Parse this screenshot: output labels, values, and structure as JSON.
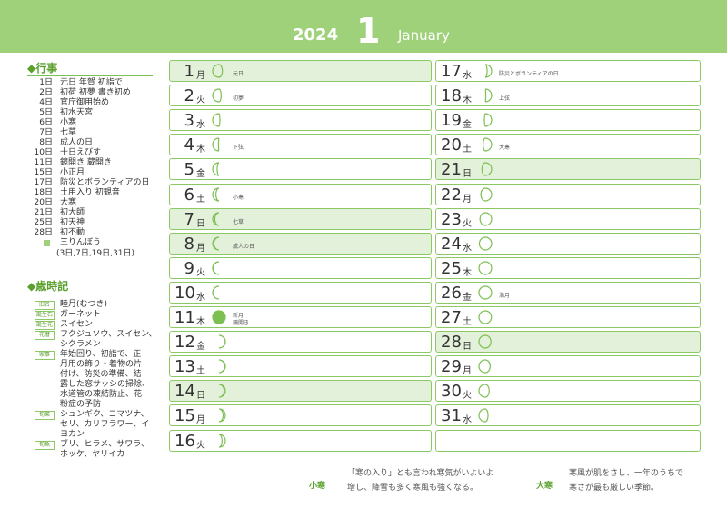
{
  "header": {
    "year": "2024",
    "month": "1",
    "month_name": "January"
  },
  "events": {
    "title": "◆行事",
    "items": [
      [
        "1日",
        "元日 年賀 初詣で"
      ],
      [
        "2日",
        "初荷 初夢 書き初め"
      ],
      [
        "4日",
        "官庁御用始め"
      ],
      [
        "5日",
        "初水天宮"
      ],
      [
        "6日",
        "小寒"
      ],
      [
        "7日",
        "七草"
      ],
      [
        "8日",
        "成人の日"
      ],
      [
        "10日",
        "十日えびす"
      ],
      [
        "11日",
        "鏡開き 蔵開き"
      ],
      [
        "15日",
        "小正月"
      ],
      [
        "17日",
        "防災とボランティアの日"
      ],
      [
        "18日",
        "土用入り 初観音"
      ],
      [
        "20日",
        "大寒"
      ],
      [
        "21日",
        "初大師"
      ],
      [
        "25日",
        "初天神"
      ],
      [
        "28日",
        "初不動"
      ]
    ],
    "sanrinbo": "三りんぼう",
    "sanrinbo_days": "(3日,7日,19日,31日)"
  },
  "almanac": {
    "title": "◆歳時記",
    "items": [
      [
        "旧名",
        [
          "睦月(むつき)"
        ]
      ],
      [
        "誕生石",
        [
          "ガーネット"
        ]
      ],
      [
        "誕生花",
        [
          "スイセン"
        ]
      ],
      [
        "花暦",
        [
          "フクジュソウ、スイセン、",
          "シクラメン"
        ]
      ],
      [
        "家事",
        [
          "年始回り、初詣で、正",
          "月用の飾り・着物の片",
          "付け、防災の準備、結",
          "露した窓サッシの掃除、",
          "水道管の凍結防止、花",
          "粉症の予防"
        ]
      ],
      [
        "旬菜",
        [
          "シュンギク、コマツナ、",
          "セリ、カリフラワー、イ",
          "ヨカン"
        ]
      ],
      [
        "旬魚",
        [
          "ブリ、ヒラメ、サワラ、",
          "ホッケ、ヤリイカ"
        ]
      ]
    ]
  },
  "days": [
    {
      "day": "1",
      "weekday": "月",
      "note": "元日",
      "shaded": true
    },
    {
      "day": "2",
      "weekday": "火",
      "note": "初夢"
    },
    {
      "day": "3",
      "weekday": "水"
    },
    {
      "day": "4",
      "weekday": "木",
      "note": "下弦"
    },
    {
      "day": "5",
      "weekday": "金"
    },
    {
      "day": "6",
      "weekday": "土",
      "note": "小寒"
    },
    {
      "day": "7",
      "weekday": "日",
      "note": "七草",
      "shaded": true
    },
    {
      "day": "8",
      "weekday": "月",
      "note": "成人の日",
      "shaded": true
    },
    {
      "day": "9",
      "weekday": "火"
    },
    {
      "day": "10",
      "weekday": "水"
    },
    {
      "day": "11",
      "weekday": "木",
      "note": "新月",
      "note2": "鏡開き"
    },
    {
      "day": "12",
      "weekday": "金"
    },
    {
      "day": "13",
      "weekday": "土"
    },
    {
      "day": "14",
      "weekday": "日",
      "shaded": true
    },
    {
      "day": "15",
      "weekday": "月"
    },
    {
      "day": "16",
      "weekday": "火"
    },
    {
      "day": "17",
      "weekday": "水",
      "note": "防災とボランティアの日"
    },
    {
      "day": "18",
      "weekday": "木",
      "note": "上弦"
    },
    {
      "day": "19",
      "weekday": "金"
    },
    {
      "day": "20",
      "weekday": "土",
      "note": "大寒"
    },
    {
      "day": "21",
      "weekday": "日",
      "shaded": true
    },
    {
      "day": "22",
      "weekday": "月"
    },
    {
      "day": "23",
      "weekday": "火"
    },
    {
      "day": "24",
      "weekday": "水"
    },
    {
      "day": "25",
      "weekday": "木"
    },
    {
      "day": "26",
      "weekday": "金",
      "note": "満月"
    },
    {
      "day": "27",
      "weekday": "土"
    },
    {
      "day": "28",
      "weekday": "日",
      "shaded": true
    },
    {
      "day": "29",
      "weekday": "月"
    },
    {
      "day": "30",
      "weekday": "火"
    },
    {
      "day": "31",
      "weekday": "水"
    }
  ],
  "footer": {
    "left_label": "小寒",
    "left_text": [
      "「寒の入り」とも言われ寒気がいよいよ",
      "増し、降雪も多く寒風も強くなる。"
    ],
    "right_label": "大寒",
    "right_text": [
      "寒風が肌をさし、一年のうちで",
      "寒さが最も厳しい季節。"
    ]
  }
}
